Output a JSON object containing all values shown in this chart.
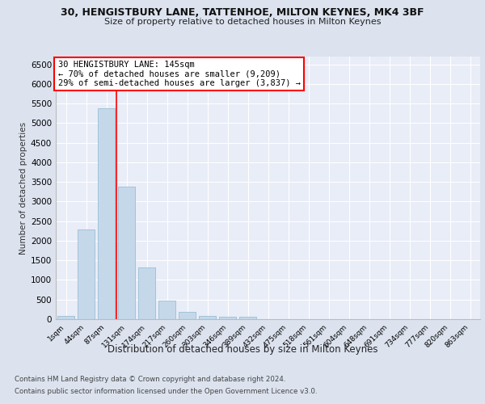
{
  "title_line1": "30, HENGISTBURY LANE, TATTENHOE, MILTON KEYNES, MK4 3BF",
  "title_line2": "Size of property relative to detached houses in Milton Keynes",
  "xlabel": "Distribution of detached houses by size in Milton Keynes",
  "ylabel": "Number of detached properties",
  "categories": [
    "1sqm",
    "44sqm",
    "87sqm",
    "131sqm",
    "174sqm",
    "217sqm",
    "260sqm",
    "303sqm",
    "346sqm",
    "389sqm",
    "432sqm",
    "475sqm",
    "518sqm",
    "561sqm",
    "604sqm",
    "648sqm",
    "691sqm",
    "734sqm",
    "777sqm",
    "820sqm",
    "863sqm"
  ],
  "values": [
    75,
    2280,
    5380,
    3380,
    1310,
    480,
    190,
    80,
    55,
    55,
    0,
    0,
    0,
    0,
    0,
    0,
    0,
    0,
    0,
    0,
    0
  ],
  "bar_color": "#c5d8ea",
  "bar_edgecolor": "#9bbdd4",
  "red_line_x": 2.5,
  "annotation_title": "30 HENGISTBURY LANE: 145sqm",
  "annotation_line2": "← 70% of detached houses are smaller (9,209)",
  "annotation_line3": "29% of semi-detached houses are larger (3,837) →",
  "ylim": [
    0,
    6700
  ],
  "yticks": [
    0,
    500,
    1000,
    1500,
    2000,
    2500,
    3000,
    3500,
    4000,
    4500,
    5000,
    5500,
    6000,
    6500
  ],
  "footer_line1": "Contains HM Land Registry data © Crown copyright and database right 2024.",
  "footer_line2": "Contains public sector information licensed under the Open Government Licence v3.0.",
  "bg_color": "#dce3ef",
  "plot_bg_color": "#e8edf7"
}
